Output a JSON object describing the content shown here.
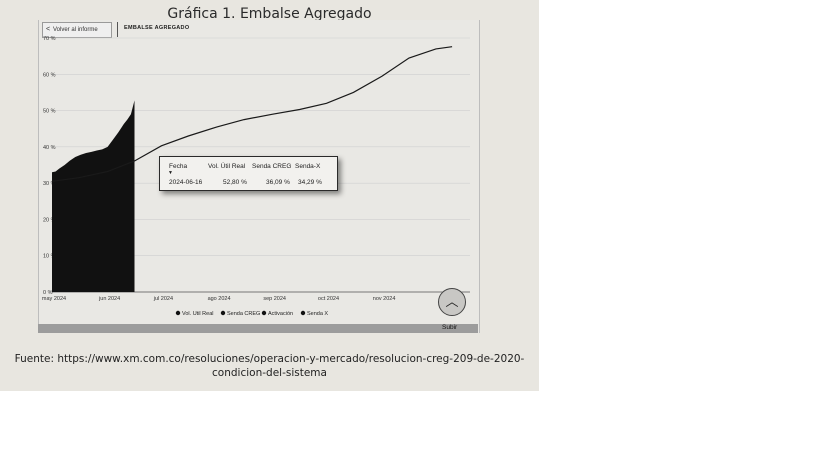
{
  "title": "Gráfica 1. Embalse Agregado",
  "back_button_label": "Volver al informe",
  "report_label": "EMBALSE AGREGADO",
  "tooltip": {
    "headers": [
      "Fecha",
      "Vol. Útil Real",
      "Senda CREG",
      "Senda-X"
    ],
    "values": [
      "2024-06-16",
      "52,80 %",
      "36,09 %",
      "34,29 %"
    ]
  },
  "scroll_up_label": "Subir",
  "source_line1": "Fuente: https://www.xm.com.co/resoluciones/operacion-y-mercado/resolucion-creg-209-de-2020-",
  "source_line2": "condicion-del-sistema",
  "colors": {
    "real_fill": "#111111",
    "senda": "#1a1a1a",
    "grid": "#cfcfcf",
    "background": "#e9e8e4"
  },
  "icons": {
    "back": "chevron-left-icon",
    "scroll_up": "chevron-up-icon"
  },
  "chart_data": {
    "type": "area",
    "ylim": [
      0,
      70
    ],
    "yticks": [
      0,
      10,
      20,
      30,
      40,
      50,
      60,
      70
    ],
    "ytick_labels": [
      "0 %",
      "10 %",
      "20 %",
      "30 %",
      "40 %",
      "50 %",
      "60 %",
      "70 %"
    ],
    "xlim": [
      "2024-05-01",
      "2024-12-20"
    ],
    "xticks": [
      "2024-05-01",
      "2024-06-01",
      "2024-07-01",
      "2024-08-01",
      "2024-09-01",
      "2024-10-01",
      "2024-11-01"
    ],
    "xtick_labels": [
      "may 2024",
      "jun 2024",
      "jul 2024",
      "ago 2024",
      "sep 2024",
      "oct 2024",
      "nov 2024"
    ],
    "grid": true,
    "legend_position": "bottom",
    "legend": [
      "Vol. Util Real",
      "Senda CREG",
      "Activación",
      "Senda X"
    ],
    "series": [
      {
        "name": "Vol. Util Real",
        "points": [
          [
            "2024-05-01",
            33.0
          ],
          [
            "2024-05-03",
            33.2
          ],
          [
            "2024-05-05",
            34.0
          ],
          [
            "2024-05-08",
            35.0
          ],
          [
            "2024-05-11",
            36.2
          ],
          [
            "2024-05-14",
            37.2
          ],
          [
            "2024-05-17",
            37.8
          ],
          [
            "2024-05-20",
            38.3
          ],
          [
            "2024-05-23",
            38.6
          ],
          [
            "2024-05-26",
            39.0
          ],
          [
            "2024-05-29",
            39.3
          ],
          [
            "2024-06-01",
            40.0
          ],
          [
            "2024-06-04",
            42.0
          ],
          [
            "2024-06-07",
            44.0
          ],
          [
            "2024-06-10",
            46.3
          ],
          [
            "2024-06-12",
            47.5
          ],
          [
            "2024-06-14",
            49.0
          ],
          [
            "2024-06-16",
            52.8
          ]
        ]
      },
      {
        "name": "Senda CREG",
        "points": [
          [
            "2024-05-01",
            30.5
          ],
          [
            "2024-05-16",
            31.5
          ],
          [
            "2024-06-01",
            33.2
          ],
          [
            "2024-06-16",
            36.09
          ],
          [
            "2024-07-01",
            40.3
          ],
          [
            "2024-07-16",
            43.0
          ],
          [
            "2024-08-01",
            45.5
          ],
          [
            "2024-08-16",
            47.5
          ],
          [
            "2024-09-01",
            49.0
          ],
          [
            "2024-09-16",
            50.3
          ],
          [
            "2024-10-01",
            52.0
          ],
          [
            "2024-10-16",
            55.0
          ],
          [
            "2024-11-01",
            59.5
          ],
          [
            "2024-11-16",
            64.5
          ],
          [
            "2024-12-01",
            67.0
          ],
          [
            "2024-12-10",
            67.6
          ]
        ]
      }
    ]
  }
}
